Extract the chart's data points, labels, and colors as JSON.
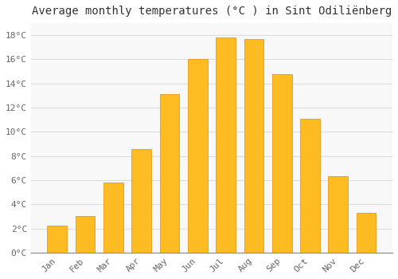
{
  "title": "Average monthly temperatures (°C ) in Sint Odiliënberg",
  "months": [
    "Jan",
    "Feb",
    "Mar",
    "Apr",
    "May",
    "Jun",
    "Jul",
    "Aug",
    "Sep",
    "Oct",
    "Nov",
    "Dec"
  ],
  "values": [
    2.2,
    3.0,
    5.8,
    8.6,
    13.1,
    16.0,
    17.8,
    17.7,
    14.8,
    11.1,
    6.3,
    3.3
  ],
  "ylim": [
    0,
    19
  ],
  "yticks": [
    0,
    2,
    4,
    6,
    8,
    10,
    12,
    14,
    16,
    18
  ],
  "ytick_labels": [
    "0°C",
    "2°C",
    "4°C",
    "6°C",
    "8°C",
    "10°C",
    "12°C",
    "14°C",
    "16°C",
    "18°C"
  ],
  "background_color": "#ffffff",
  "grid_color": "#dddddd",
  "title_fontsize": 10,
  "tick_fontsize": 8,
  "bar_color_main": "#FFB300",
  "bar_color_edge": "#E09000"
}
